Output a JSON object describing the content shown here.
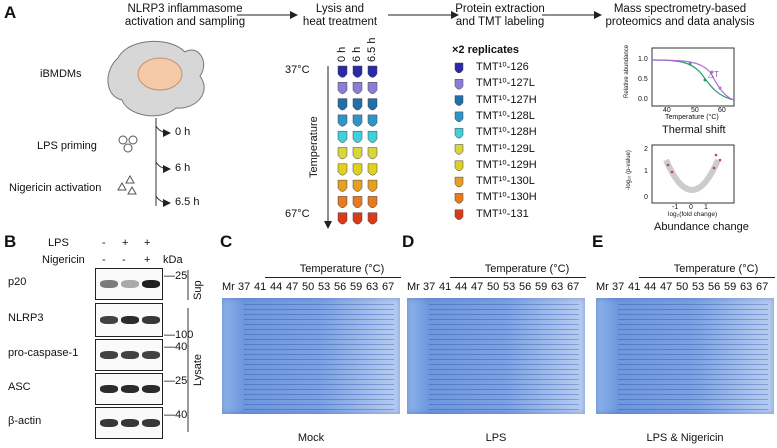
{
  "panels": {
    "a": "A",
    "b": "B",
    "c": "C",
    "d": "D",
    "e": "E"
  },
  "workflow": {
    "step1": [
      "NLRP3 inflammasome",
      "activation and sampling"
    ],
    "step2": [
      "Lysis and",
      "heat treatment"
    ],
    "step3": [
      "Protein extraction",
      "and TMT labeling"
    ],
    "step4": [
      "Mass spectrometry-based",
      "proteomics and data analysis"
    ]
  },
  "cells": {
    "label": "iBMDMs",
    "lps": "LPS priming",
    "nig": "Nigericin activation",
    "times": [
      "0 h",
      "6 h",
      "6.5 h"
    ]
  },
  "heat": {
    "cols": [
      "0 h",
      "6 h",
      "6.5 h"
    ],
    "top": "37°C",
    "bottom": "67°C",
    "axis": "Temperature"
  },
  "tmt": {
    "rep": "×2 replicates",
    "labels": [
      "TMT¹⁰-126",
      "TMT¹⁰-127L",
      "TMT¹⁰-127H",
      "TMT¹⁰-128L",
      "TMT¹⁰-128H",
      "TMT¹⁰-129L",
      "TMT¹⁰-129H",
      "TMT¹⁰-130L",
      "TMT¹⁰-130H",
      "TMT¹⁰-131"
    ],
    "colors": [
      "#2a2aa8",
      "#8a7fd6",
      "#1f6fa8",
      "#2f95c8",
      "#3fd0dc",
      "#d8d63a",
      "#e0d020",
      "#e5a020",
      "#e57a20",
      "#d83a1a"
    ]
  },
  "thermal": {
    "ylabel": "Relative abundance",
    "xlabel": "Temperature (°C)",
    "title": "Thermal shift",
    "xticks": [
      "40",
      "50",
      "60"
    ],
    "yticks": [
      "1.0",
      "0.5",
      "0.0"
    ],
    "tm": "△T"
  },
  "volcano": {
    "ylabel": "-log₁₀ (p-value)",
    "xlabel": "log₂(fold change)",
    "title": "Abundance change",
    "xticks": [
      "-1",
      "0",
      "1"
    ],
    "yticks": [
      "2",
      "1",
      "0"
    ]
  },
  "blot": {
    "conds": [
      "LPS",
      "Nigericin"
    ],
    "lps": [
      "-",
      "+",
      "+"
    ],
    "nig": [
      "-",
      "-",
      "+"
    ],
    "kda": "kDa",
    "rows": [
      "p20",
      "NLRP3",
      "pro-caspase-1",
      "ASC",
      "β-actin"
    ],
    "markers": [
      "25",
      "100",
      "40",
      "25",
      "40"
    ],
    "sup": "Sup",
    "lysate": "Lysate"
  },
  "gels": {
    "temp_title": "Temperature (°C)",
    "lanes": [
      "Mr",
      "37",
      "41",
      "44",
      "47",
      "50",
      "53",
      "56",
      "59",
      "63",
      "67"
    ],
    "captions": [
      "Mock",
      "LPS",
      "LPS & Nigericin"
    ]
  }
}
